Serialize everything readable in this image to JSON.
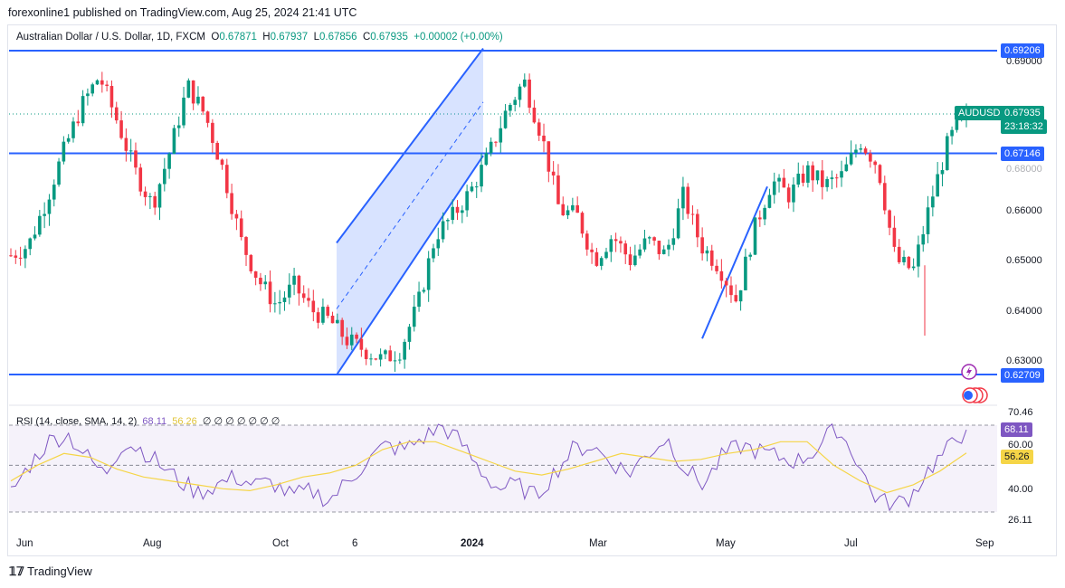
{
  "header": {
    "publish_text": "forexonline1 published on TradingView.com, Aug 25, 2024 21:41 UTC"
  },
  "symbol": {
    "name": "Australian Dollar / U.S. Dollar, 1D, FXCM",
    "open_label": "O",
    "open": "0.67871",
    "high_label": "H",
    "high": "0.67937",
    "low_label": "L",
    "low": "0.67856",
    "close_label": "C",
    "close": "0.67935",
    "change": "+0.00002 (+0.00%)"
  },
  "price_axis": {
    "ticks": [
      "0.69000",
      "0.66000",
      "0.65000",
      "0.64000",
      "0.63000"
    ],
    "level_top": "0.69206",
    "level_mid": "0.67146",
    "level_bottom": "0.62709",
    "current_symbol": "AUDUSD",
    "current_price": "0.67935",
    "countdown": "23:18:32",
    "hidden_tick": "0.68000"
  },
  "rsi": {
    "label": "RSI (14, close, SMA, 14, 2)",
    "value": "68.11",
    "sma": "56.26",
    "extra": "∅ ∅ ∅ ∅ ∅ ∅ ∅",
    "ticks": [
      "70.46",
      "60.00",
      "40.00",
      "26.11"
    ]
  },
  "time_axis": [
    "Jun",
    "Aug",
    "Oct",
    "6",
    "2024",
    "Mar",
    "May",
    "Jul",
    "Sep"
  ],
  "footer": {
    "brand": "TradingView"
  },
  "colors": {
    "up": "#089981",
    "down": "#f23645",
    "line": "#2962ff",
    "rsi": "#7e57c2",
    "sma": "#f5d547"
  },
  "chart_data": {
    "type": "candlestick",
    "title": "Australian Dollar / U.S. Dollar, 1D, FXCM",
    "ylim": [
      0.622,
      0.697
    ],
    "horizontal_levels": [
      0.69206,
      0.67146,
      0.62709
    ],
    "x_labels": [
      "Jun",
      "Aug",
      "Oct",
      "6",
      "2024",
      "Mar",
      "May",
      "Jul",
      "Sep"
    ],
    "close_path": [
      0.651,
      0.653,
      0.662,
      0.672,
      0.681,
      0.687,
      0.678,
      0.668,
      0.661,
      0.672,
      0.685,
      0.679,
      0.668,
      0.654,
      0.646,
      0.641,
      0.645,
      0.64,
      0.638,
      0.634,
      0.632,
      0.63,
      0.632,
      0.641,
      0.655,
      0.659,
      0.664,
      0.671,
      0.68,
      0.686,
      0.675,
      0.66,
      0.659,
      0.65,
      0.655,
      0.65,
      0.654,
      0.651,
      0.663,
      0.653,
      0.649,
      0.642,
      0.656,
      0.666,
      0.663,
      0.668,
      0.665,
      0.667,
      0.674,
      0.669,
      0.65,
      0.648,
      0.662,
      0.674,
      0.6794
    ],
    "rsi_path": [
      36,
      50,
      62,
      66,
      55,
      45,
      62,
      58,
      50,
      42,
      36,
      40,
      44,
      40,
      41,
      34,
      37,
      32,
      42,
      52,
      60,
      58,
      64,
      70,
      62,
      48,
      38,
      40,
      34,
      46,
      58,
      60,
      52,
      46,
      56,
      64,
      48,
      40,
      55,
      60,
      57,
      54,
      52,
      58,
      70,
      56,
      35,
      29,
      34,
      48,
      58,
      68.11
    ],
    "sma_path": [
      42,
      50,
      56,
      54,
      48,
      44,
      42,
      40,
      38,
      37,
      40,
      44,
      46,
      50,
      58,
      62,
      62,
      57,
      52,
      47,
      45,
      48,
      52,
      56,
      54,
      52,
      53,
      56,
      58,
      62,
      62,
      50,
      42,
      36,
      40,
      47,
      56.26
    ]
  }
}
